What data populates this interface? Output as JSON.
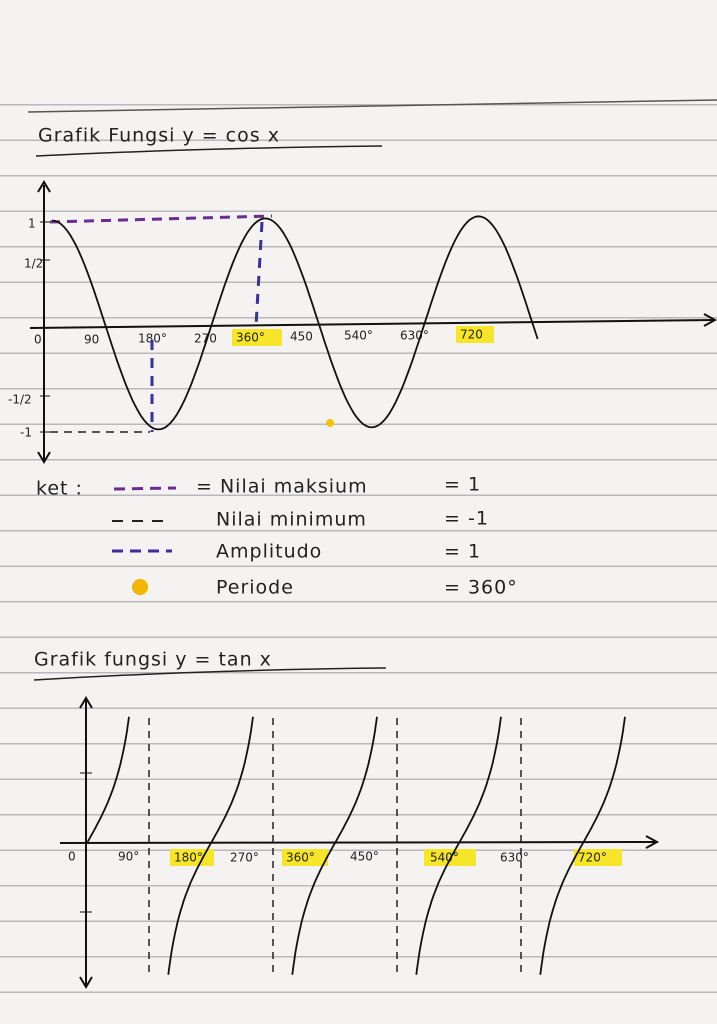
{
  "cos_section": {
    "title": "Grafik Fungsi y = cos x",
    "x_labels": [
      "0",
      "90",
      "180°",
      "270",
      "360°",
      "450",
      "540°",
      "630°",
      "720"
    ],
    "y_labels": [
      "1",
      "1/2",
      "-1/2",
      "-1"
    ]
  },
  "legend": {
    "heading": "ket :",
    "items": [
      {
        "label": "= Nilai maksium",
        "value": "= 1"
      },
      {
        "label": "Nilai minimum",
        "value": "= -1"
      },
      {
        "label": "Amplitudo",
        "value": "= 1"
      },
      {
        "label": "Periode",
        "value": "= 360°"
      }
    ]
  },
  "tan_section": {
    "title": "Grafik fungsi y = tan x",
    "x_labels": [
      "0",
      "90°",
      "180°",
      "270°",
      "360°",
      "450°",
      "540°",
      "630°",
      "720°"
    ]
  }
}
